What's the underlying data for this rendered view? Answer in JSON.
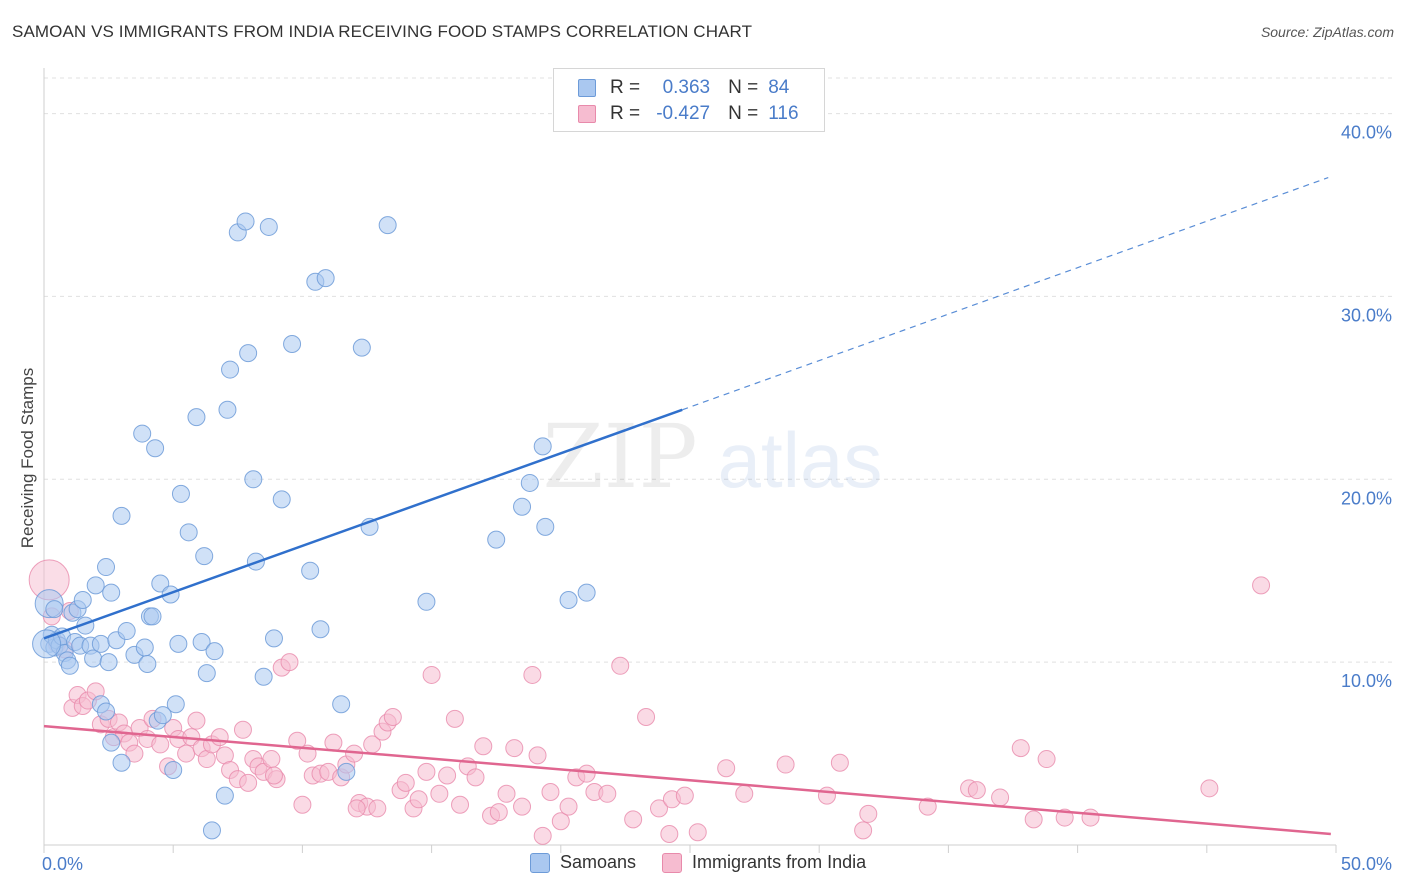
{
  "title": "SAMOAN VS IMMIGRANTS FROM INDIA RECEIVING FOOD STAMPS CORRELATION CHART",
  "source": "Source: ZipAtlas.com",
  "watermark": {
    "zip": "ZIP",
    "atlas": "atlas"
  },
  "legend_top": [
    {
      "r_label": "R =",
      "r_value": "0.363",
      "n_label": "N =",
      "n_value": "84"
    },
    {
      "r_label": "R =",
      "r_value": "-0.427",
      "n_label": "N =",
      "n_value": "116"
    }
  ],
  "legend_bottom": [
    "Samoans",
    "Immigrants from India"
  ],
  "colors": {
    "blue_fill": "#aac8f0",
    "blue_stroke": "#6d9bd8",
    "blue_line": "#3070cc",
    "pink_fill": "#f6bcd0",
    "pink_stroke": "#e88aab",
    "pink_line": "#e06690",
    "axis_text": "#4a7cc9",
    "grid": "#e0e0e0"
  },
  "chart_data": {
    "type": "scatter",
    "title": "SAMOAN VS IMMIGRANTS FROM INDIA RECEIVING FOOD STAMPS CORRELATION CHART",
    "xlabel": "",
    "ylabel": "Receiving Food Stamps",
    "xlim": [
      0,
      50
    ],
    "ylim": [
      0,
      42
    ],
    "x_tick_labels": [
      "0.0%",
      "50.0%"
    ],
    "y_ticks": [
      10,
      20,
      30,
      40
    ],
    "y_tick_labels": [
      "10.0%",
      "20.0%",
      "30.0%",
      "40.0%"
    ],
    "series": [
      {
        "name": "Samoans",
        "r": 0.363,
        "n": 84,
        "trend": {
          "x0": 0,
          "y0": 11.3,
          "x1": 24.7,
          "y1": 23.8,
          "dash_x1": 49.7,
          "dash_y1": 36.5
        },
        "points": [
          [
            0.2,
            11.0
          ],
          [
            0.3,
            11.5
          ],
          [
            0.4,
            10.8
          ],
          [
            0.5,
            11.2
          ],
          [
            0.6,
            10.9
          ],
          [
            0.7,
            11.4
          ],
          [
            0.8,
            10.5
          ],
          [
            0.9,
            10.1
          ],
          [
            1.0,
            9.8
          ],
          [
            1.1,
            12.7
          ],
          [
            1.2,
            11.1
          ],
          [
            1.3,
            12.9
          ],
          [
            1.4,
            10.9
          ],
          [
            1.5,
            13.4
          ],
          [
            1.6,
            12.0
          ],
          [
            1.8,
            10.9
          ],
          [
            1.9,
            10.2
          ],
          [
            2.0,
            14.2
          ],
          [
            2.2,
            11.0
          ],
          [
            2.4,
            15.2
          ],
          [
            2.5,
            10.0
          ],
          [
            2.6,
            13.8
          ],
          [
            2.8,
            11.2
          ],
          [
            3.0,
            18.0
          ],
          [
            3.2,
            11.7
          ],
          [
            3.5,
            10.4
          ],
          [
            3.8,
            22.5
          ],
          [
            3.9,
            10.8
          ],
          [
            4.0,
            9.9
          ],
          [
            4.1,
            12.5
          ],
          [
            4.2,
            12.5
          ],
          [
            4.3,
            21.7
          ],
          [
            4.5,
            14.3
          ],
          [
            4.9,
            13.7
          ],
          [
            5.0,
            4.1
          ],
          [
            5.1,
            7.7
          ],
          [
            5.2,
            11.0
          ],
          [
            5.3,
            19.2
          ],
          [
            5.6,
            17.1
          ],
          [
            5.9,
            23.4
          ],
          [
            6.1,
            11.1
          ],
          [
            6.2,
            15.8
          ],
          [
            6.3,
            9.4
          ],
          [
            6.6,
            10.6
          ],
          [
            7.0,
            2.7
          ],
          [
            7.1,
            23.8
          ],
          [
            7.2,
            26.0
          ],
          [
            7.5,
            33.5
          ],
          [
            7.8,
            34.1
          ],
          [
            7.9,
            26.9
          ],
          [
            8.1,
            20.0
          ],
          [
            8.2,
            15.5
          ],
          [
            8.5,
            9.2
          ],
          [
            8.7,
            33.8
          ],
          [
            8.9,
            11.3
          ],
          [
            9.2,
            18.9
          ],
          [
            9.6,
            27.4
          ],
          [
            10.3,
            15.0
          ],
          [
            10.5,
            30.8
          ],
          [
            10.7,
            11.8
          ],
          [
            10.9,
            31.0
          ],
          [
            11.5,
            7.7
          ],
          [
            11.7,
            4.0
          ],
          [
            12.3,
            27.2
          ],
          [
            12.6,
            17.4
          ],
          [
            13.3,
            33.9
          ],
          [
            14.8,
            13.3
          ],
          [
            17.5,
            16.7
          ],
          [
            18.5,
            18.5
          ],
          [
            18.8,
            19.8
          ],
          [
            19.3,
            21.8
          ],
          [
            19.4,
            17.4
          ],
          [
            20.3,
            13.4
          ],
          [
            21.0,
            13.8
          ],
          [
            0.1,
            11.0
          ],
          [
            0.2,
            13.2
          ],
          [
            2.2,
            7.7
          ],
          [
            2.4,
            7.3
          ],
          [
            2.6,
            5.6
          ],
          [
            3.0,
            4.5
          ],
          [
            4.4,
            6.8
          ],
          [
            4.6,
            7.1
          ],
          [
            6.5,
            0.8
          ],
          [
            0.4,
            12.9
          ]
        ]
      },
      {
        "name": "Immigrants from India",
        "r": -0.427,
        "n": 116,
        "trend": {
          "x0": 0,
          "y0": 6.5,
          "x1": 49.8,
          "y1": 0.6
        },
        "points": [
          [
            0.2,
            14.5
          ],
          [
            0.3,
            12.5
          ],
          [
            0.5,
            11.0
          ],
          [
            0.8,
            10.7
          ],
          [
            1.0,
            12.8
          ],
          [
            1.1,
            7.5
          ],
          [
            1.3,
            8.2
          ],
          [
            1.5,
            7.6
          ],
          [
            1.7,
            7.9
          ],
          [
            2.0,
            8.4
          ],
          [
            2.2,
            6.6
          ],
          [
            2.5,
            6.9
          ],
          [
            2.7,
            5.9
          ],
          [
            2.9,
            6.7
          ],
          [
            3.1,
            6.1
          ],
          [
            3.3,
            5.6
          ],
          [
            3.5,
            5.0
          ],
          [
            3.7,
            6.4
          ],
          [
            4.0,
            5.8
          ],
          [
            4.2,
            6.9
          ],
          [
            4.5,
            5.5
          ],
          [
            4.8,
            4.3
          ],
          [
            5.0,
            6.4
          ],
          [
            5.2,
            5.8
          ],
          [
            5.5,
            5.0
          ],
          [
            5.7,
            5.9
          ],
          [
            5.9,
            6.8
          ],
          [
            6.1,
            5.3
          ],
          [
            6.3,
            4.7
          ],
          [
            6.5,
            5.5
          ],
          [
            6.8,
            5.9
          ],
          [
            7.0,
            4.9
          ],
          [
            7.2,
            4.1
          ],
          [
            7.5,
            3.6
          ],
          [
            7.7,
            6.3
          ],
          [
            7.9,
            3.4
          ],
          [
            8.1,
            4.7
          ],
          [
            8.3,
            4.3
          ],
          [
            8.5,
            4.0
          ],
          [
            8.8,
            4.7
          ],
          [
            9.0,
            3.6
          ],
          [
            9.2,
            9.7
          ],
          [
            9.5,
            10.0
          ],
          [
            9.8,
            5.7
          ],
          [
            10.0,
            2.2
          ],
          [
            10.2,
            5.0
          ],
          [
            10.4,
            3.8
          ],
          [
            10.7,
            3.9
          ],
          [
            11.0,
            4.0
          ],
          [
            11.2,
            5.6
          ],
          [
            11.5,
            3.7
          ],
          [
            11.7,
            4.4
          ],
          [
            12.0,
            5.0
          ],
          [
            12.2,
            2.3
          ],
          [
            12.5,
            2.1
          ],
          [
            12.7,
            5.5
          ],
          [
            12.9,
            2.0
          ],
          [
            13.1,
            6.2
          ],
          [
            13.3,
            6.7
          ],
          [
            13.5,
            7.0
          ],
          [
            13.8,
            3.0
          ],
          [
            14.0,
            3.4
          ],
          [
            14.3,
            2.0
          ],
          [
            14.5,
            2.5
          ],
          [
            14.8,
            4.0
          ],
          [
            15.0,
            9.3
          ],
          [
            15.3,
            2.8
          ],
          [
            15.6,
            3.8
          ],
          [
            15.9,
            6.9
          ],
          [
            16.1,
            2.2
          ],
          [
            16.4,
            4.3
          ],
          [
            16.7,
            3.7
          ],
          [
            17.0,
            5.4
          ],
          [
            17.3,
            1.6
          ],
          [
            17.6,
            1.8
          ],
          [
            17.9,
            2.8
          ],
          [
            18.2,
            5.3
          ],
          [
            18.5,
            2.1
          ],
          [
            18.9,
            9.3
          ],
          [
            19.1,
            4.9
          ],
          [
            19.3,
            0.5
          ],
          [
            19.6,
            2.9
          ],
          [
            20.0,
            1.3
          ],
          [
            20.3,
            2.1
          ],
          [
            20.6,
            3.7
          ],
          [
            21.0,
            3.9
          ],
          [
            21.3,
            2.9
          ],
          [
            21.8,
            2.8
          ],
          [
            22.3,
            9.8
          ],
          [
            22.8,
            1.4
          ],
          [
            23.3,
            7.0
          ],
          [
            23.8,
            2.0
          ],
          [
            24.3,
            2.5
          ],
          [
            24.8,
            2.7
          ],
          [
            25.3,
            0.7
          ],
          [
            26.4,
            4.2
          ],
          [
            27.1,
            2.8
          ],
          [
            28.7,
            4.4
          ],
          [
            30.3,
            2.7
          ],
          [
            30.8,
            4.5
          ],
          [
            31.7,
            0.8
          ],
          [
            31.9,
            1.7
          ],
          [
            34.2,
            2.1
          ],
          [
            35.8,
            3.1
          ],
          [
            36.1,
            3.0
          ],
          [
            37.0,
            2.6
          ],
          [
            37.8,
            5.3
          ],
          [
            38.3,
            1.4
          ],
          [
            38.8,
            4.7
          ],
          [
            39.5,
            1.5
          ],
          [
            40.5,
            1.5
          ],
          [
            45.1,
            3.1
          ],
          [
            47.1,
            14.2
          ],
          [
            24.2,
            0.6
          ],
          [
            12.1,
            2.0
          ],
          [
            8.9,
            3.8
          ]
        ]
      }
    ]
  }
}
